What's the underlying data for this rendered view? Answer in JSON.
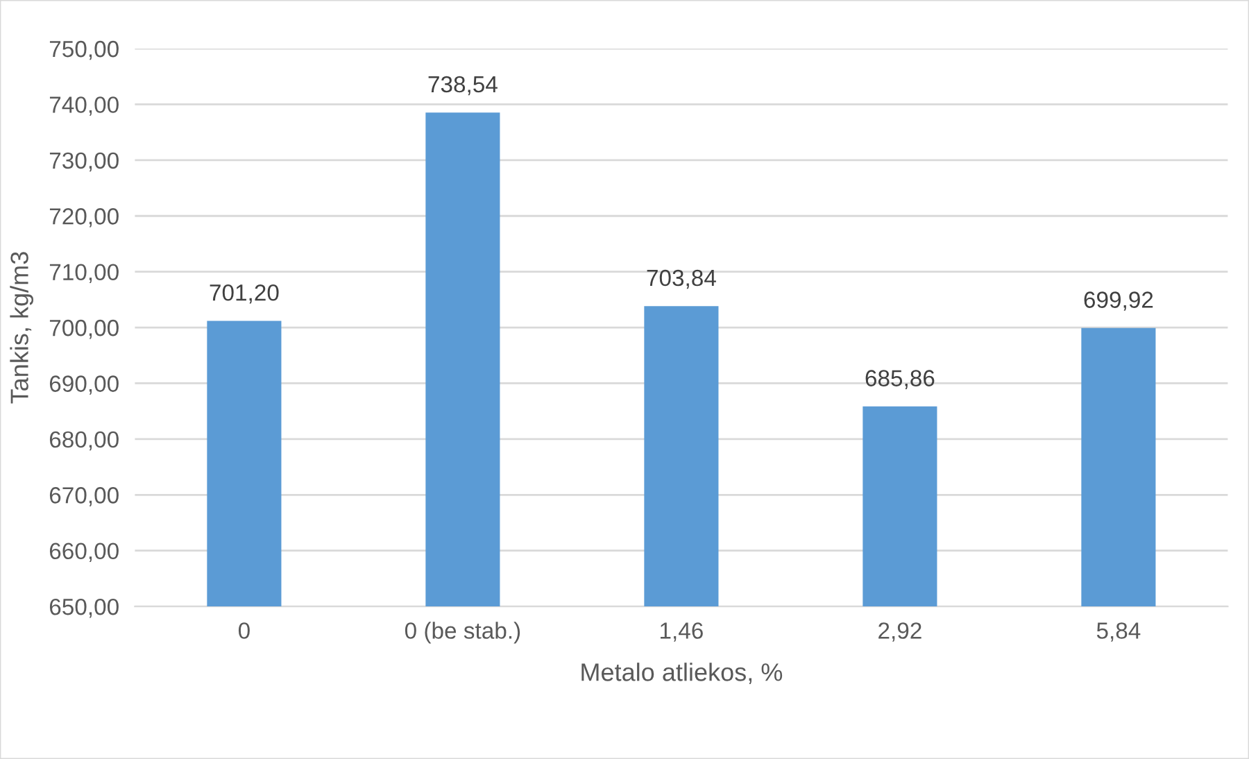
{
  "chart_data": {
    "type": "bar",
    "xlabel": "Metalo atliekos, %",
    "ylabel": "Tankis, kg/m3",
    "categories": [
      "0",
      "0 (be stab.)",
      "1,46",
      "2,92",
      "5,84"
    ],
    "values": [
      701.2,
      738.54,
      703.84,
      685.86,
      699.92
    ],
    "value_labels": [
      "701,20",
      "738,54",
      "703,84",
      "685,86",
      "699,92"
    ],
    "color": "#5b9bd5",
    "ylim": [
      650,
      750
    ],
    "yticks": [
      {
        "value": 650,
        "label": "650,00"
      },
      {
        "value": 660,
        "label": "660,00"
      },
      {
        "value": 670,
        "label": "670,00"
      },
      {
        "value": 680,
        "label": "680,00"
      },
      {
        "value": 690,
        "label": "690,00"
      },
      {
        "value": 700,
        "label": "700,00"
      },
      {
        "value": 710,
        "label": "710,00"
      },
      {
        "value": 720,
        "label": "720,00"
      },
      {
        "value": 730,
        "label": "730,00"
      },
      {
        "value": 740,
        "label": "740,00"
      },
      {
        "value": 750,
        "label": "750,00"
      }
    ],
    "grid": "y",
    "legend": false
  }
}
